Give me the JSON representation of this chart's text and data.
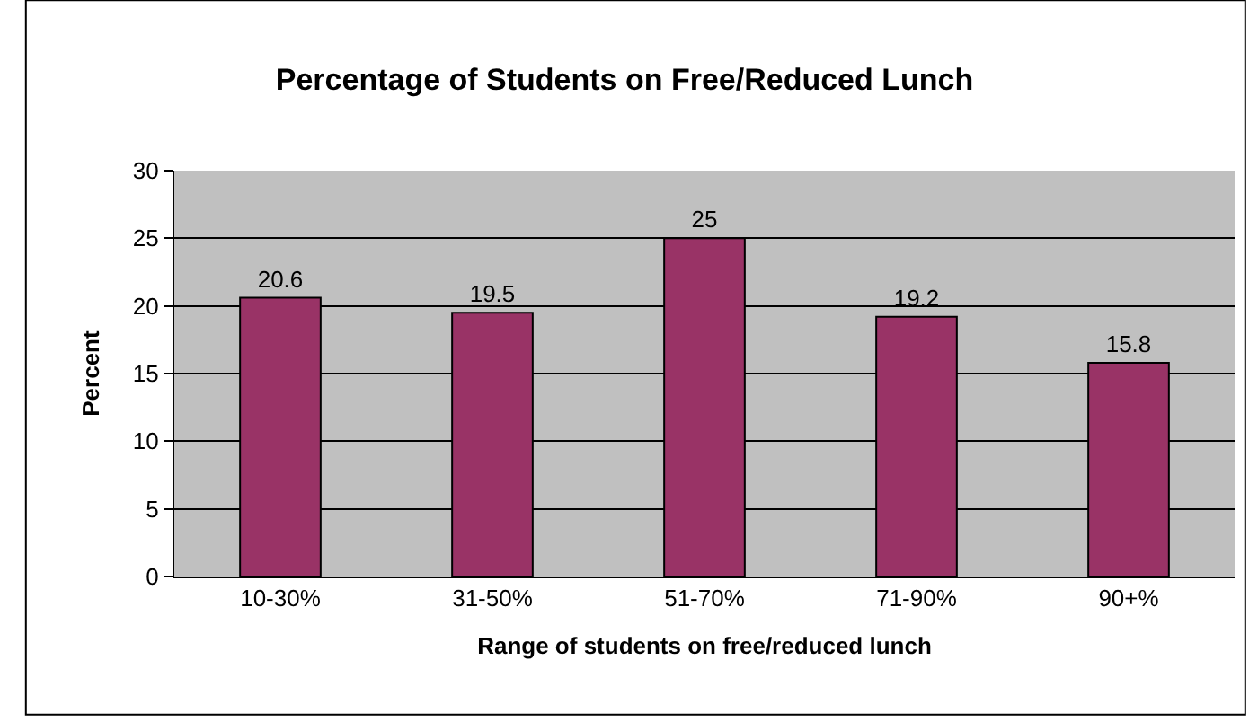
{
  "chart_data": {
    "type": "bar",
    "title": "Percentage of Students on Free/Reduced Lunch",
    "xlabel": "Range of students on free/reduced lunch",
    "ylabel": "Percent",
    "categories": [
      "10-30%",
      "31-50%",
      "51-70%",
      "71-90%",
      "90+%"
    ],
    "values": [
      20.6,
      19.5,
      25,
      19.2,
      15.8
    ],
    "color": "#993366",
    "ylim": [
      0,
      30
    ],
    "yticks": [
      0,
      5,
      10,
      15,
      20,
      25,
      30
    ],
    "grid": "y",
    "data_labels": true,
    "legend": false
  }
}
